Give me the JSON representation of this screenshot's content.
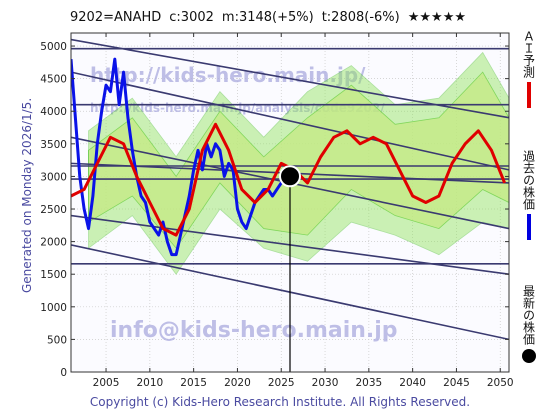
{
  "header": {
    "code": "9202=ANAHD",
    "current": "c:3002",
    "ai_mid": "m:3148(+5%)",
    "target": "t:2808(-6%)",
    "stars": "★★★★★"
  },
  "side_label": "Generated on Monday 2026/1/5.",
  "watermarks": [
    "http://kids-hero.main.jp/",
    "http://kids-hero.main.jp/analysis/code9202/",
    "info@kids-hero.main.jp"
  ],
  "copyright": "Copyright (c) Kids-Hero Research Institute. All Rights Reserved.",
  "legend": [
    {
      "label": "ＡＩ予測",
      "color": "#e00000"
    },
    {
      "label": "過去の株価",
      "color": "#0000e0"
    },
    {
      "label": "最新の株価",
      "color": "#000000"
    }
  ],
  "colors": {
    "past": "#0a12e8",
    "forecast": "#e00000",
    "band_green": "#8fe35a",
    "band_yellow": "#f3f0a6",
    "channel": "#3a3a70",
    "grid": "#c9c9c9"
  },
  "chart_data": {
    "type": "line",
    "xlim": [
      2001,
      2051
    ],
    "ylim": [
      0,
      5200
    ],
    "x_ticks": [
      2005,
      2010,
      2015,
      2020,
      2025,
      2030,
      2035,
      2040,
      2045,
      2050
    ],
    "y_ticks": [
      0,
      500,
      1000,
      1500,
      2000,
      2500,
      3000,
      3500,
      4000,
      4500,
      5000
    ],
    "grid": true,
    "latest_point": {
      "x": 2026.0,
      "y": 3002
    },
    "series": [
      {
        "kind": "past",
        "x": [
          2001.0,
          2001.5,
          2002.0,
          2002.5,
          2003.0,
          2003.5,
          2004.0,
          2004.5,
          2005.0,
          2005.5,
          2006.0,
          2006.5,
          2007.0,
          2007.5,
          2008.0,
          2008.5,
          2009.0,
          2009.5,
          2010.0,
          2010.5,
          2011.0,
          2011.5,
          2012.0,
          2012.5,
          2013.0,
          2013.5,
          2014.0,
          2014.5,
          2015.0,
          2015.5,
          2016.0,
          2016.5,
          2017.0,
          2017.5,
          2018.0,
          2018.5,
          2019.0,
          2019.5,
          2020.0,
          2020.5,
          2021.0,
          2021.5,
          2022.0,
          2022.5,
          2023.0,
          2023.5,
          2024.0,
          2024.5,
          2025.0,
          2025.5
        ],
        "values": [
          4800,
          3900,
          3000,
          2500,
          2200,
          2700,
          3500,
          4000,
          4400,
          4300,
          4800,
          4100,
          4600,
          3900,
          3400,
          3000,
          2700,
          2600,
          2300,
          2200,
          2100,
          2300,
          2000,
          1800,
          1800,
          2100,
          2400,
          2700,
          3100,
          3400,
          3100,
          3500,
          3300,
          3500,
          3400,
          3000,
          3200,
          3100,
          2500,
          2300,
          2200,
          2400,
          2600,
          2700,
          2800,
          2800,
          2700,
          2800,
          2900,
          3000
        ]
      },
      {
        "kind": "forecast",
        "x": [
          2001.0,
          2002.5,
          2004.0,
          2005.5,
          2007.0,
          2008.5,
          2010.0,
          2011.5,
          2013.0,
          2014.5,
          2016.0,
          2017.5,
          2019.0,
          2020.5,
          2022.0,
          2023.5,
          2025.0,
          2026.5,
          2028.0,
          2029.5,
          2031.0,
          2032.5,
          2034.0,
          2035.5,
          2037.0,
          2038.5,
          2040.0,
          2041.5,
          2043.0,
          2044.5,
          2046.0,
          2047.5,
          2049.0,
          2050.5
        ],
        "values": [
          2700,
          2800,
          3200,
          3600,
          3500,
          3000,
          2600,
          2200,
          2100,
          2500,
          3400,
          3800,
          3400,
          2800,
          2600,
          2800,
          3200,
          3100,
          2900,
          3300,
          3600,
          3700,
          3500,
          3600,
          3500,
          3100,
          2700,
          2600,
          2700,
          3200,
          3500,
          3700,
          3400,
          2900
        ]
      }
    ],
    "bands": [
      {
        "x": [
          2003,
          2008,
          2013,
          2018,
          2023,
          2028,
          2033,
          2038,
          2043,
          2048,
          2051
        ],
        "lo": [
          2300,
          2700,
          1900,
          2900,
          2200,
          2100,
          2800,
          2400,
          2200,
          2800,
          2600
        ],
        "hi": [
          3400,
          3900,
          3000,
          4000,
          3300,
          3900,
          4400,
          3800,
          3900,
          4600,
          3900
        ]
      },
      {
        "x": [
          2003,
          2008,
          2013,
          2018,
          2023,
          2028,
          2033,
          2038,
          2043,
          2048,
          2051
        ],
        "lo": [
          1900,
          2400,
          1500,
          2500,
          1900,
          1700,
          2300,
          2100,
          1800,
          2300,
          2200
        ],
        "hi": [
          3700,
          4200,
          3300,
          4300,
          3600,
          4300,
          4700,
          4100,
          4200,
          4900,
          4200
        ]
      }
    ],
    "channels": [
      {
        "x": [
          2001,
          2051
        ],
        "values": [
          5100,
          3900
        ]
      },
      {
        "x": [
          2001,
          2051
        ],
        "values": [
          4600,
          3100
        ]
      },
      {
        "x": [
          2001,
          2051
        ],
        "values": [
          3600,
          2200
        ]
      },
      {
        "x": [
          2001,
          2051
        ],
        "values": [
          3200,
          2900
        ]
      },
      {
        "x": [
          2001,
          2051
        ],
        "values": [
          2400,
          1500
        ]
      },
      {
        "x": [
          2001,
          2051
        ],
        "values": [
          1950,
          500
        ]
      },
      {
        "x": [
          2001,
          2051
        ],
        "values": [
          3160,
          3160
        ]
      },
      {
        "x": [
          2001,
          2051
        ],
        "values": [
          2960,
          2960
        ]
      },
      {
        "x": [
          2001,
          2051
        ],
        "values": [
          1660,
          1660
        ]
      },
      {
        "x": [
          2001,
          2051
        ],
        "values": [
          4960,
          4960
        ]
      },
      {
        "x": [
          2001,
          2051
        ],
        "values": [
          4100,
          4100
        ]
      }
    ]
  }
}
